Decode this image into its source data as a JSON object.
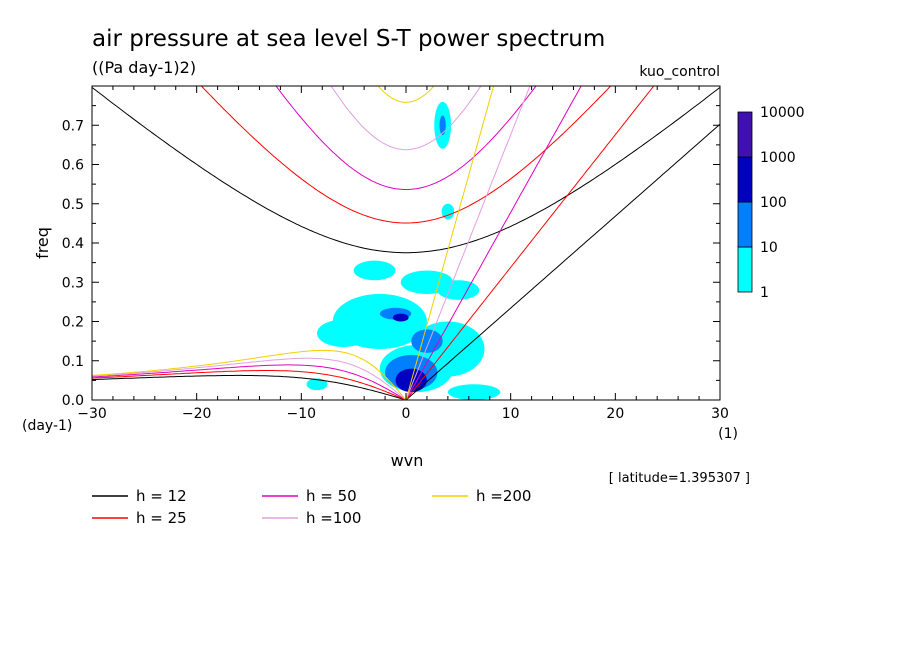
{
  "chart_data": {
    "type": "heatmap",
    "title": "air pressure at sea level S-T power spectrum",
    "subtitle": "((Pa day-1)2)",
    "run_label": "kuo_control",
    "xlabel": "wvn",
    "ylabel": "freq",
    "x_unit": "(1)",
    "y_unit": "(day-1)",
    "xlim": [
      -30,
      30
    ],
    "ylim": [
      0,
      0.8
    ],
    "x_ticks": [
      -30,
      -20,
      -10,
      0,
      10,
      20,
      30
    ],
    "y_ticks": [
      0.0,
      0.1,
      0.2,
      0.3,
      0.4,
      0.5,
      0.6,
      0.7
    ],
    "latitude_note": "[ latitude=1.395307 ]",
    "colorbar": {
      "levels": [
        "1",
        "10",
        "100",
        "1000",
        "10000"
      ],
      "colors": [
        "#00ffff",
        "#0080ff",
        "#0000c0",
        "#4010b0"
      ]
    },
    "contours": [
      {
        "label": "h = 12",
        "color": "#000000"
      },
      {
        "label": "h = 25",
        "color": "#ff0000"
      },
      {
        "label": "h = 50",
        "color": "#e000c0"
      },
      {
        "label": "h =100",
        "color": "#e0a0e0"
      },
      {
        "label": "h =200",
        "color": "#f0d000"
      }
    ],
    "power_blobs": [
      {
        "x": -2.5,
        "y": 0.2,
        "w": 9,
        "h": 0.14,
        "level": 0
      },
      {
        "x": 1.0,
        "y": 0.08,
        "w": 7,
        "h": 0.12,
        "level": 0
      },
      {
        "x": 4.0,
        "y": 0.13,
        "w": 7,
        "h": 0.14,
        "level": 0
      },
      {
        "x": -6.0,
        "y": 0.17,
        "w": 5,
        "h": 0.07,
        "level": 0
      },
      {
        "x": 2.0,
        "y": 0.3,
        "w": 5,
        "h": 0.06,
        "level": 0
      },
      {
        "x": -3.0,
        "y": 0.33,
        "w": 4,
        "h": 0.05,
        "level": 0
      },
      {
        "x": 5.0,
        "y": 0.28,
        "w": 4,
        "h": 0.05,
        "level": 0
      },
      {
        "x": 3.5,
        "y": 0.7,
        "w": 1.6,
        "h": 0.12,
        "level": 0
      },
      {
        "x": 4.0,
        "y": 0.48,
        "w": 1.2,
        "h": 0.04,
        "level": 0
      },
      {
        "x": 6.5,
        "y": 0.02,
        "w": 5,
        "h": 0.04,
        "level": 0
      },
      {
        "x": -8.5,
        "y": 0.04,
        "w": 2,
        "h": 0.03,
        "level": 0
      },
      {
        "x": 0.5,
        "y": 0.07,
        "w": 5,
        "h": 0.09,
        "level": 1
      },
      {
        "x": 2.0,
        "y": 0.15,
        "w": 3,
        "h": 0.06,
        "level": 1
      },
      {
        "x": -1.0,
        "y": 0.22,
        "w": 3,
        "h": 0.03,
        "level": 1
      },
      {
        "x": 3.5,
        "y": 0.7,
        "w": 0.6,
        "h": 0.05,
        "level": 1
      },
      {
        "x": 0.5,
        "y": 0.05,
        "w": 3,
        "h": 0.06,
        "level": 2
      },
      {
        "x": -0.5,
        "y": 0.21,
        "w": 1.5,
        "h": 0.02,
        "level": 2
      }
    ]
  }
}
